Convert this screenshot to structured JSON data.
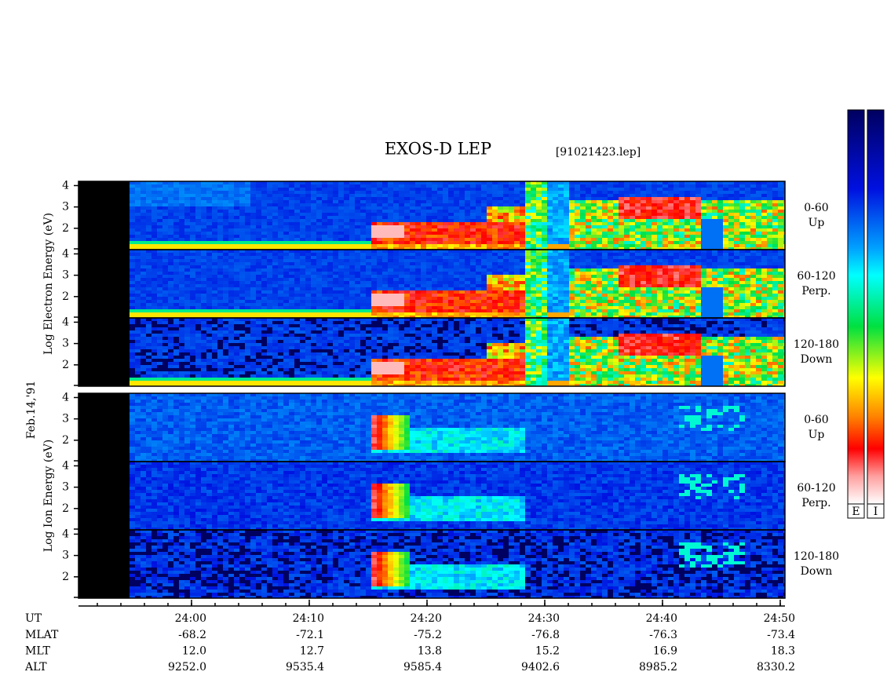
{
  "chart_data": {
    "type": "spectrogram",
    "title": "EXOS-D LEP",
    "subtitle": "[91021423.lep]",
    "date": "Feb.14,'91",
    "x_label": "UT",
    "xlim": [
      -9.6,
      50.4
    ],
    "xticks": [
      {
        "value": 0,
        "label": "24:00"
      },
      {
        "value": 10,
        "label": "24:10"
      },
      {
        "value": 20,
        "label": "24:20"
      },
      {
        "value": 30,
        "label": "24:30"
      },
      {
        "value": 40,
        "label": "24:40"
      },
      {
        "value": 50,
        "label": "24:50"
      }
    ],
    "ephemeris": [
      {
        "name": "MLAT",
        "values": [
          "-68.2",
          "-72.1",
          "-75.2",
          "-76.8",
          "-76.3",
          "-73.4"
        ]
      },
      {
        "name": "MLT",
        "values": [
          "12.0",
          "12.7",
          "13.8",
          "15.2",
          "16.9",
          "18.3"
        ]
      },
      {
        "name": "ALT",
        "values": [
          "9252.0",
          "9535.4",
          "9585.4",
          "9402.6",
          "8985.2",
          "8330.2"
        ]
      }
    ],
    "groups": [
      {
        "ylabel": "Log  Electron  Energy (eV)",
        "ylim": [
          1,
          4.2
        ],
        "yticks": [
          2,
          3,
          4
        ],
        "panels": [
          {
            "pitch": "0-60",
            "direction": "Up"
          },
          {
            "pitch": "60-120",
            "direction": "Perp."
          },
          {
            "pitch": "120-180",
            "direction": "Down"
          }
        ]
      },
      {
        "ylabel": "Log  Ion  Energy (eV)",
        "ylim": [
          1,
          4.2
        ],
        "yticks": [
          2,
          3,
          4
        ],
        "panels": [
          {
            "pitch": "0-60",
            "direction": "Up"
          },
          {
            "pitch": "60-120",
            "direction": "Perp."
          },
          {
            "pitch": "120-180",
            "direction": "Down"
          }
        ]
      }
    ],
    "colorbar_labels": [
      "E",
      "I"
    ]
  }
}
